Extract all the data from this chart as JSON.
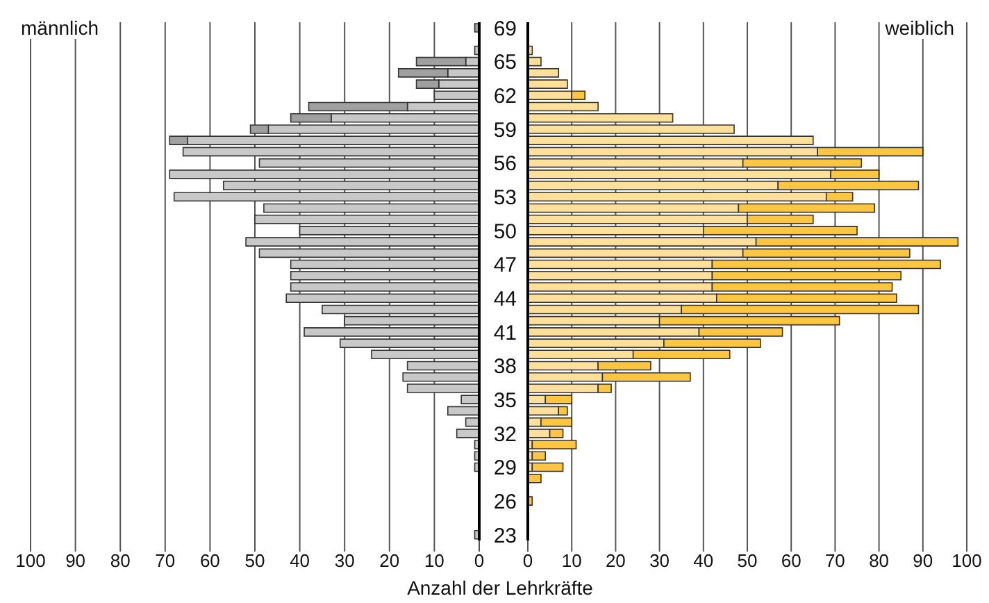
{
  "chart_data": [
    {
      "type": "bar",
      "orientation": "horizontal",
      "stacked": true,
      "title": "männlich",
      "xlabel": "Anzahl der Lehrkräfte",
      "tick_labels": "x",
      "grid": "x",
      "categories": [
        "69",
        null,
        null,
        "65",
        null,
        null,
        "62",
        null,
        null,
        "59",
        null,
        null,
        "56",
        null,
        null,
        "53",
        null,
        null,
        "50",
        null,
        null,
        "47",
        null,
        null,
        "44",
        null,
        null,
        "41",
        null,
        null,
        "38",
        null,
        null,
        "35",
        null,
        null,
        "32",
        null,
        null,
        "29",
        null,
        null,
        "26",
        null,
        null,
        "23"
      ],
      "series": [
        {
          "color": "#c8c8c8",
          "values": [
            0,
            0,
            1,
            3,
            7,
            9,
            10,
            16,
            33,
            47,
            65,
            66,
            49,
            69,
            57,
            68,
            48,
            50,
            40,
            52,
            49,
            42,
            42,
            42,
            43,
            35,
            30,
            39,
            31,
            24,
            16,
            17,
            16,
            4,
            7,
            3,
            5,
            1,
            1,
            1,
            0,
            0,
            0,
            0,
            0,
            1
          ]
        },
        {
          "color": "#a0a0a0",
          "values": [
            1,
            0,
            0,
            11,
            11,
            5,
            0,
            22,
            9,
            4,
            4,
            0,
            0,
            0,
            0,
            0,
            0,
            0,
            0,
            0,
            0,
            0,
            0,
            0,
            0,
            0,
            0,
            0,
            0,
            0,
            0,
            0,
            0,
            0,
            0,
            0,
            0,
            0,
            0,
            0,
            0,
            0,
            0,
            0,
            0,
            0
          ]
        }
      ],
      "xlim": [
        100,
        0
      ],
      "xticks": [
        0,
        10,
        20,
        30,
        40,
        50,
        60,
        70,
        80,
        90,
        100
      ]
    },
    {
      "type": "bar",
      "orientation": "horizontal",
      "stacked": true,
      "title": "weiblich",
      "grid": "x",
      "categories": [
        "69",
        null,
        null,
        "65",
        null,
        null,
        "62",
        null,
        null,
        "59",
        null,
        null,
        "56",
        null,
        null,
        "53",
        null,
        null,
        "50",
        null,
        null,
        "47",
        null,
        null,
        "44",
        null,
        null,
        "41",
        null,
        null,
        "38",
        null,
        null,
        "35",
        null,
        null,
        "32",
        null,
        null,
        "29",
        null,
        null,
        "26",
        null,
        null,
        "23"
      ],
      "series": [
        {
          "color": "#ffe09a",
          "values": [
            0,
            0,
            1,
            3,
            7,
            9,
            10,
            16,
            33,
            47,
            65,
            66,
            49,
            69,
            57,
            68,
            48,
            50,
            40,
            52,
            49,
            42,
            42,
            42,
            43,
            35,
            30,
            39,
            31,
            24,
            16,
            17,
            16,
            4,
            7,
            3,
            5,
            1,
            1,
            1,
            0,
            0,
            0,
            0,
            0,
            0
          ]
        },
        {
          "color": "#fdc640",
          "values": [
            0,
            0,
            0,
            0,
            0,
            0,
            3,
            0,
            0,
            0,
            0,
            24,
            27,
            11,
            32,
            6,
            31,
            15,
            35,
            46,
            38,
            52,
            43,
            41,
            41,
            54,
            41,
            19,
            22,
            22,
            12,
            20,
            3,
            6,
            2,
            7,
            3,
            10,
            3,
            7,
            3,
            0,
            1,
            0,
            0,
            0
          ]
        }
      ],
      "xlim": [
        0,
        100
      ],
      "xticks": [
        0,
        10,
        20,
        30,
        40,
        50,
        60,
        70,
        80,
        90,
        100
      ]
    }
  ]
}
